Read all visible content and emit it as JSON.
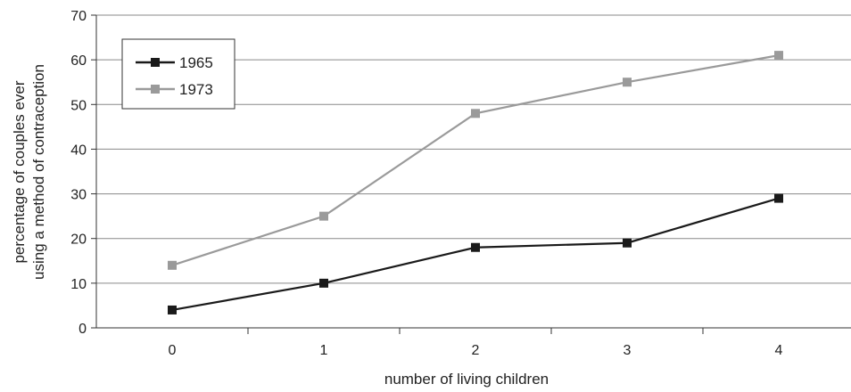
{
  "chart_data": {
    "type": "line",
    "title": "",
    "xlabel": "number of living children",
    "ylabel": [
      "percentage of couples ever",
      "using a method of contraception"
    ],
    "categories": [
      "0",
      "1",
      "2",
      "3",
      "4"
    ],
    "ylim": [
      0,
      70
    ],
    "yticks": [
      0,
      10,
      20,
      30,
      40,
      50,
      60,
      70
    ],
    "grid": true,
    "legend_position": "top-left",
    "series": [
      {
        "name": "1965",
        "color": "#1a1a1a",
        "values": [
          4,
          10,
          18,
          19,
          29
        ]
      },
      {
        "name": "1973",
        "color": "#9a9a9a",
        "values": [
          14,
          25,
          48,
          55,
          61
        ]
      }
    ]
  }
}
